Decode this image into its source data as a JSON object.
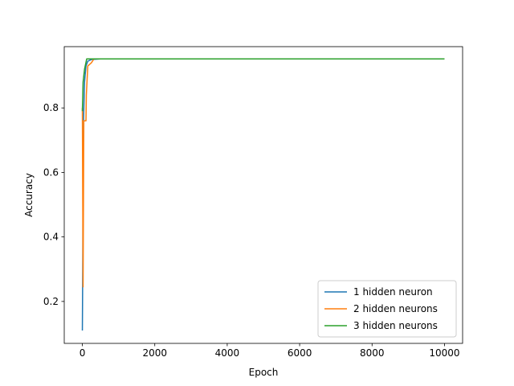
{
  "chart_data": {
    "type": "line",
    "xlabel": "Epoch",
    "ylabel": "Accuracy",
    "xlim": [
      -500,
      10500
    ],
    "ylim": [
      0.07,
      0.99
    ],
    "xticks": [
      0,
      2000,
      4000,
      6000,
      8000,
      10000
    ],
    "xtick_labels": [
      "0",
      "2000",
      "4000",
      "6000",
      "8000",
      "10000"
    ],
    "yticks": [
      0.2,
      0.4,
      0.6,
      0.8
    ],
    "ytick_labels": [
      "0.2",
      "0.4",
      "0.6",
      "0.8"
    ],
    "grid": false,
    "legend_position": "lower-right",
    "series": [
      {
        "name": "1 hidden neuron",
        "color": "#1f77b4",
        "points": [
          [
            0,
            0.11
          ],
          [
            10,
            0.3
          ],
          [
            20,
            0.6
          ],
          [
            35,
            0.77
          ],
          [
            60,
            0.88
          ],
          [
            100,
            0.93
          ],
          [
            150,
            0.945
          ],
          [
            250,
            0.95
          ],
          [
            500,
            0.952
          ],
          [
            10000,
            0.952
          ]
        ]
      },
      {
        "name": "2 hidden neurons",
        "color": "#ff7f0e",
        "points": [
          [
            0,
            0.8
          ],
          [
            20,
            0.245
          ],
          [
            40,
            0.76
          ],
          [
            100,
            0.76
          ],
          [
            110,
            0.84
          ],
          [
            150,
            0.93
          ],
          [
            250,
            0.94
          ],
          [
            320,
            0.952
          ],
          [
            10000,
            0.952
          ]
        ]
      },
      {
        "name": "3 hidden neurons",
        "color": "#2ca02c",
        "points": [
          [
            0,
            0.79
          ],
          [
            20,
            0.88
          ],
          [
            60,
            0.92
          ],
          [
            120,
            0.952
          ],
          [
            10000,
            0.952
          ]
        ]
      }
    ]
  }
}
